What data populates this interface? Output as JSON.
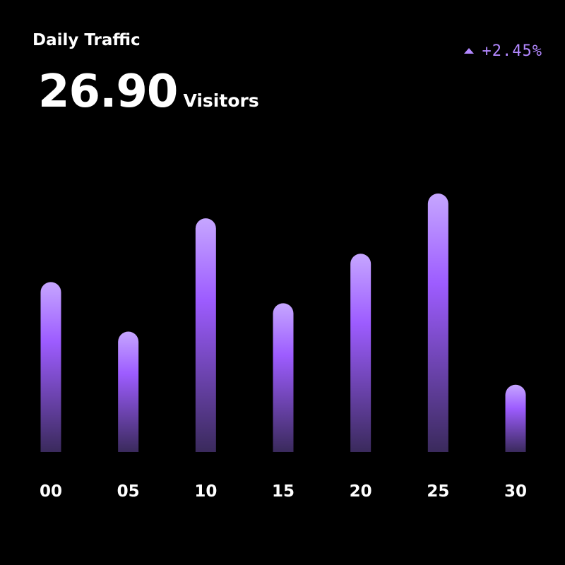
{
  "widget": {
    "title": "Daily Traffic",
    "trend": {
      "icon": "triangle-up-icon",
      "value": "+2.45%",
      "color": "#b388ff"
    },
    "metric": {
      "value": "26.90",
      "unit": "Visitors"
    }
  },
  "chart_data": {
    "type": "bar",
    "title": "Daily Traffic",
    "xlabel": "",
    "ylabel": "",
    "categories": [
      "00",
      "05",
      "10",
      "15",
      "20",
      "25",
      "30"
    ],
    "series": [
      {
        "values": [
          240,
          170,
          330,
          210,
          280,
          365,
          95
        ]
      }
    ],
    "ylim": [
      0,
      365
    ],
    "grid": false,
    "legend": "none",
    "colors": {
      "bar_top": "#c6a6ff",
      "bar_mid": "#9d5cff",
      "bar_bottom": "#3a2a5c"
    }
  }
}
